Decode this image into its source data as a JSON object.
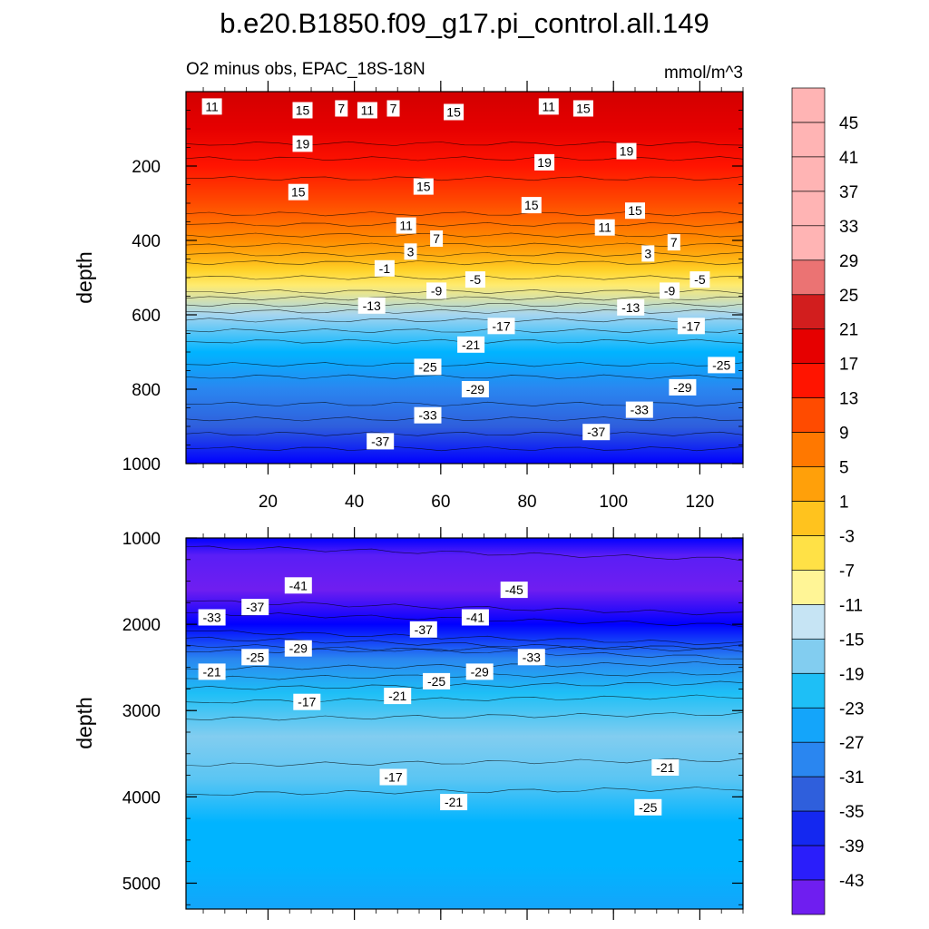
{
  "title": "b.e20.B1850.f09_g17.pi_control.all.149",
  "subtitle_left": "O2 minus obs, EPAC_18S-18N",
  "subtitle_right": "mmol/m^3",
  "chart_data": [
    {
      "type": "heatmap",
      "panel": "upper",
      "xlabel": "",
      "ylabel": "depth",
      "x_range": [
        1,
        130
      ],
      "y_range": [
        0,
        1000
      ],
      "y_reversed": true,
      "x_ticks": [
        20,
        40,
        60,
        80,
        100,
        120
      ],
      "y_ticks": [
        200,
        400,
        600,
        800,
        1000
      ],
      "profile_depth": [
        0,
        100,
        200,
        300,
        400,
        450,
        480,
        520,
        600,
        700,
        800,
        900,
        1000
      ],
      "profile_value": [
        21,
        20,
        15,
        12,
        5,
        1,
        -2,
        -6,
        -15,
        -22,
        -28,
        -33,
        -38
      ],
      "contour_labels": [
        {
          "text": "11",
          "x": 7,
          "y": 40
        },
        {
          "text": "15",
          "x": 28,
          "y": 50
        },
        {
          "text": "7",
          "x": 37,
          "y": 45
        },
        {
          "text": "11",
          "x": 43,
          "y": 50
        },
        {
          "text": "7",
          "x": 49,
          "y": 45
        },
        {
          "text": "15",
          "x": 63,
          "y": 55
        },
        {
          "text": "11",
          "x": 85,
          "y": 40
        },
        {
          "text": "15",
          "x": 93,
          "y": 45
        },
        {
          "text": "19",
          "x": 28,
          "y": 140
        },
        {
          "text": "19",
          "x": 84,
          "y": 190
        },
        {
          "text": "19",
          "x": 103,
          "y": 160
        },
        {
          "text": "15",
          "x": 27,
          "y": 270
        },
        {
          "text": "15",
          "x": 56,
          "y": 255
        },
        {
          "text": "15",
          "x": 81,
          "y": 305
        },
        {
          "text": "15",
          "x": 105,
          "y": 320
        },
        {
          "text": "11",
          "x": 52,
          "y": 360
        },
        {
          "text": "11",
          "x": 98,
          "y": 365
        },
        {
          "text": "7",
          "x": 59,
          "y": 395
        },
        {
          "text": "7",
          "x": 114,
          "y": 405
        },
        {
          "text": "3",
          "x": 53,
          "y": 430
        },
        {
          "text": "3",
          "x": 108,
          "y": 435
        },
        {
          "text": "-1",
          "x": 47,
          "y": 475
        },
        {
          "text": "-5",
          "x": 68,
          "y": 505
        },
        {
          "text": "-5",
          "x": 120,
          "y": 505
        },
        {
          "text": "-9",
          "x": 59,
          "y": 535
        },
        {
          "text": "-9",
          "x": 113,
          "y": 535
        },
        {
          "text": "-13",
          "x": 44,
          "y": 575
        },
        {
          "text": "-13",
          "x": 104,
          "y": 580
        },
        {
          "text": "-17",
          "x": 74,
          "y": 630
        },
        {
          "text": "-17",
          "x": 118,
          "y": 630
        },
        {
          "text": "-21",
          "x": 67,
          "y": 680
        },
        {
          "text": "-25",
          "x": 57,
          "y": 740
        },
        {
          "text": "-25",
          "x": 125,
          "y": 735
        },
        {
          "text": "-29",
          "x": 68,
          "y": 800
        },
        {
          "text": "-29",
          "x": 116,
          "y": 795
        },
        {
          "text": "-33",
          "x": 57,
          "y": 870
        },
        {
          "text": "-33",
          "x": 106,
          "y": 855
        },
        {
          "text": "-37",
          "x": 46,
          "y": 940
        },
        {
          "text": "-37",
          "x": 96,
          "y": 915
        }
      ]
    },
    {
      "type": "heatmap",
      "panel": "lower",
      "xlabel": "",
      "ylabel": "depth",
      "x_range": [
        1,
        130
      ],
      "y_range": [
        1000,
        5300
      ],
      "y_reversed": true,
      "x_ticks": [
        20,
        40,
        60,
        80,
        100,
        120
      ],
      "y_ticks": [
        1000,
        2000,
        3000,
        4000,
        5000
      ],
      "profile_depth": [
        1000,
        1200,
        1600,
        2000,
        2400,
        2800,
        3300,
        3800,
        4300,
        4800,
        5300
      ],
      "profile_value": [
        -38,
        -42,
        -44,
        -38,
        -28,
        -21,
        -16,
        -19,
        -22,
        -23,
        -24
      ],
      "contour_labels": [
        {
          "text": "-41",
          "x": 27,
          "y": 1550
        },
        {
          "text": "-45",
          "x": 77,
          "y": 1600
        },
        {
          "text": "-37",
          "x": 17,
          "y": 1800
        },
        {
          "text": "-41",
          "x": 68,
          "y": 1920
        },
        {
          "text": "-33",
          "x": 7,
          "y": 1920
        },
        {
          "text": "-37",
          "x": 56,
          "y": 2060
        },
        {
          "text": "-29",
          "x": 27,
          "y": 2280
        },
        {
          "text": "-33",
          "x": 81,
          "y": 2380
        },
        {
          "text": "-25",
          "x": 17,
          "y": 2380
        },
        {
          "text": "-29",
          "x": 69,
          "y": 2550
        },
        {
          "text": "-21",
          "x": 7,
          "y": 2550
        },
        {
          "text": "-25",
          "x": 59,
          "y": 2660
        },
        {
          "text": "-21",
          "x": 50,
          "y": 2830
        },
        {
          "text": "-17",
          "x": 29,
          "y": 2900
        },
        {
          "text": "-21",
          "x": 112,
          "y": 3660
        },
        {
          "text": "-17",
          "x": 49,
          "y": 3770
        },
        {
          "text": "-21",
          "x": 63,
          "y": 4060
        },
        {
          "text": "-25",
          "x": 108,
          "y": 4120
        }
      ]
    }
  ],
  "colorbar": {
    "labels": [
      "45",
      "41",
      "37",
      "33",
      "29",
      "25",
      "21",
      "17",
      "13",
      "9",
      "5",
      "1",
      "-3",
      "-7",
      "-11",
      "-15",
      "-19",
      "-23",
      "-27",
      "-31",
      "-35",
      "-39",
      "-43"
    ],
    "colors": [
      "#8c24e8",
      "#6f1ef0",
      "#5a1ef6",
      "#2a1efa",
      "#0000ff",
      "#1428f0",
      "#2846e0",
      "#2f5fdc",
      "#2f72e6",
      "#2a86f0",
      "#1e96f5",
      "#14a5fa",
      "#00b4ff",
      "#1ebff6",
      "#5ac5f3",
      "#82cdf0",
      "#a5d5f0",
      "#c6e4f4",
      "#fffac8",
      "#fff596",
      "#ffeb6e",
      "#ffe146",
      "#ffd228",
      "#ffc31e",
      "#ffb414",
      "#ffa00a",
      "#ff8c00",
      "#ff7800",
      "#ff6400",
      "#ff4b00",
      "#ff3200",
      "#ff1400",
      "#fa0000",
      "#e60000",
      "#d20000",
      "#d21e1e",
      "#e14646",
      "#eb7373",
      "#f5a0a0",
      "#ffb4b4"
    ]
  }
}
